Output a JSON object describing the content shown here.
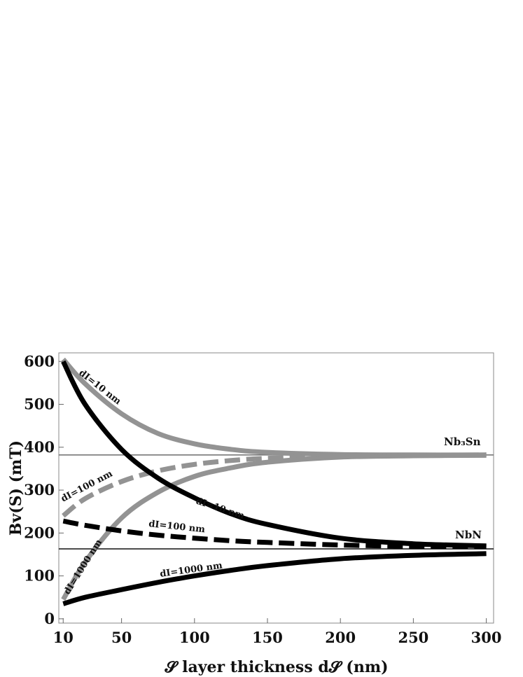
{
  "chart_data": {
    "type": "line",
    "xlabel": "𝓢 layer thickness d𝓢 (nm)",
    "ylabel": "Bv(S) (mT)",
    "xlim": [
      7,
      305
    ],
    "ylim": [
      -10,
      620
    ],
    "xticks": [
      10,
      50,
      100,
      150,
      200,
      250,
      300
    ],
    "yticks": [
      0,
      100,
      200,
      300,
      400,
      500,
      600
    ],
    "grid": false,
    "reference_lines": [
      {
        "name": "Nb₃Sn",
        "y": 382
      },
      {
        "name": "NbN",
        "y": 163
      }
    ],
    "series": [
      {
        "name": "dI=10 nm",
        "material": "Nb₃Sn",
        "color": "#939393",
        "dash": "solid",
        "x": [
          10,
          25,
          50,
          75,
          100,
          125,
          150,
          200,
          250,
          300
        ],
        "y": [
          605,
          548,
          478,
          432,
          408,
          395,
          388,
          383,
          382,
          382
        ]
      },
      {
        "name": "dI=100 nm",
        "material": "Nb₃Sn",
        "color": "#939393",
        "dash": "dashed",
        "x": [
          10,
          25,
          50,
          75,
          100,
          125,
          150,
          200,
          250,
          300
        ],
        "y": [
          240,
          280,
          320,
          345,
          360,
          369,
          374,
          379,
          381,
          382
        ]
      },
      {
        "name": "dI=1000 nm",
        "material": "Nb₃Sn",
        "color": "#939393",
        "dash": "solid",
        "x": [
          10,
          25,
          50,
          75,
          100,
          125,
          150,
          200,
          250,
          300
        ],
        "y": [
          45,
          132,
          235,
          295,
          332,
          352,
          365,
          377,
          380,
          381
        ]
      },
      {
        "name": "dI=10 nm",
        "material": "NbN",
        "color": "#000000",
        "dash": "solid",
        "x": [
          10,
          25,
          50,
          75,
          100,
          125,
          150,
          200,
          250,
          300
        ],
        "y": [
          600,
          500,
          395,
          328,
          282,
          245,
          220,
          188,
          175,
          170
        ]
      },
      {
        "name": "dI=100 nm",
        "material": "NbN",
        "color": "#000000",
        "dash": "dashed",
        "x": [
          10,
          25,
          50,
          75,
          100,
          125,
          150,
          200,
          250,
          300
        ],
        "y": [
          228,
          218,
          205,
          195,
          188,
          182,
          178,
          172,
          169,
          168
        ]
      },
      {
        "name": "dI=1000 nm",
        "material": "NbN",
        "color": "#000000",
        "dash": "solid",
        "x": [
          10,
          25,
          50,
          75,
          100,
          125,
          150,
          200,
          250,
          300
        ],
        "y": [
          35,
          50,
          68,
          85,
          100,
          113,
          124,
          140,
          148,
          152
        ]
      }
    ],
    "annotations": [
      "dI=10 nm",
      "dI=100 nm",
      "dI=1000 nm",
      "dI=10 nm",
      "dI=100 nm",
      "dI=1000 nm",
      "Nb₃Sn",
      "NbN"
    ]
  }
}
